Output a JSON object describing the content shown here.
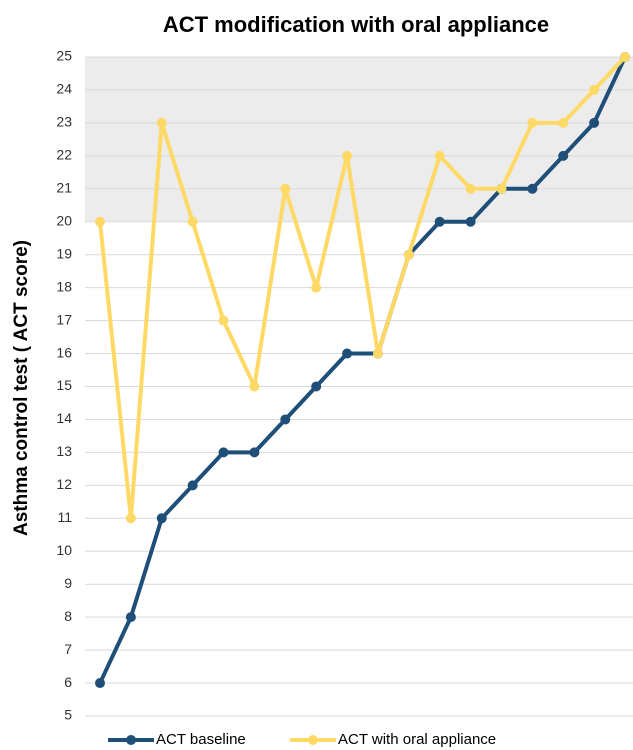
{
  "chart_data": {
    "type": "line",
    "title": "ACT modification with oral appliance",
    "y_label": "Asthma control test ( ACT score)",
    "categories": [
      null,
      null,
      null,
      null,
      null,
      null,
      null,
      null,
      null,
      null,
      null,
      null,
      null,
      null,
      null,
      null,
      null,
      null
    ],
    "series": [
      {
        "name": "ACT baseline",
        "color": "#1f4e79",
        "values": [
          6,
          8,
          11,
          12,
          13,
          13,
          14,
          15,
          16,
          16,
          19,
          20,
          20,
          21,
          21,
          22,
          23,
          25
        ]
      },
      {
        "name": "ACT with oral appliance",
        "color": "#ffd966",
        "values": [
          20,
          11,
          23,
          20,
          17,
          15,
          21,
          18,
          22,
          16,
          19,
          22,
          21,
          21,
          23,
          23,
          24,
          25
        ]
      }
    ],
    "ylim": [
      5,
      25
    ],
    "yticks": [
      5,
      6,
      7,
      8,
      9,
      10,
      11,
      12,
      13,
      14,
      15,
      16,
      17,
      18,
      19,
      20,
      21,
      22,
      23,
      24,
      25
    ],
    "shade": [
      20,
      25
    ],
    "grid": true,
    "legend": "bottom"
  }
}
